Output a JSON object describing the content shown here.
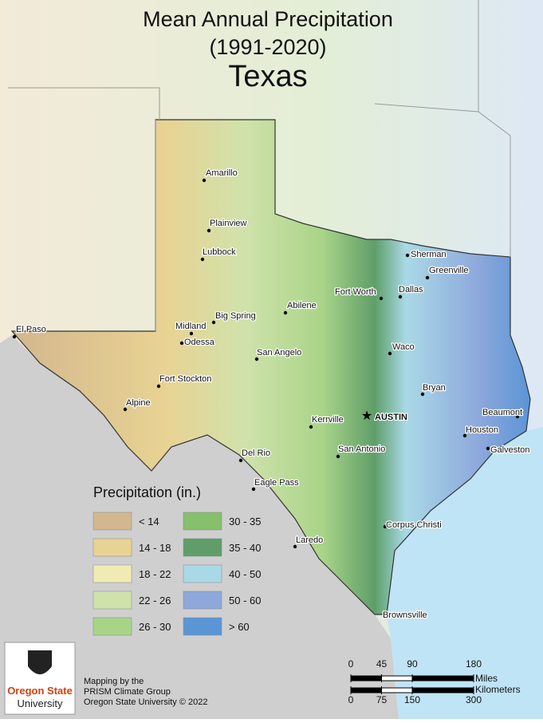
{
  "title": {
    "line1": "Mean Annual Precipitation",
    "line2": "(1991-2020)",
    "line3": "Texas"
  },
  "cities": [
    "Amarillo",
    "Plainview",
    "Lubbock",
    "Sherman",
    "Greenville",
    "Fort Worth",
    "Dallas",
    "Abilene",
    "El Paso",
    "Big Spring",
    "Midland",
    "Odessa",
    "San Angelo",
    "Waco",
    "Bryan",
    "Fort Stockton",
    "Alpine",
    "Kerrville",
    "AUSTIN",
    "Beaumont",
    "Houston",
    "Galveston",
    "San Antonio",
    "Del Rio",
    "Eagle Pass",
    "Corpus Christi",
    "Laredo",
    "Brownsville"
  ],
  "legend": {
    "title": "Precipitation (in.)",
    "items": [
      {
        "label": "< 14",
        "color": "#d3b78e"
      },
      {
        "label": "14 - 18",
        "color": "#e8d393"
      },
      {
        "label": "18 - 22",
        "color": "#efebb3"
      },
      {
        "label": "22 - 26",
        "color": "#d0e2ab"
      },
      {
        "label": "26 - 30",
        "color": "#a9d488"
      },
      {
        "label": "30 - 35",
        "color": "#86c06b"
      },
      {
        "label": "35 - 40",
        "color": "#5f9e69"
      },
      {
        "label": "40 - 50",
        "color": "#a9d9e6"
      },
      {
        "label": "50 - 60",
        "color": "#8ea8dc"
      },
      {
        "label": "> 60",
        "color": "#5a95d6"
      }
    ]
  },
  "credits": [
    "Mapping by the",
    "PRISM Climate Group",
    "Oregon State University © 2022"
  ],
  "logo": [
    "Oregon State",
    "University"
  ],
  "scale": {
    "miles": {
      "ticks": [
        0,
        45,
        90,
        180
      ],
      "unit": "Miles"
    },
    "km": {
      "ticks": [
        0,
        75,
        150,
        300
      ],
      "unit": "Kilometers"
    }
  }
}
